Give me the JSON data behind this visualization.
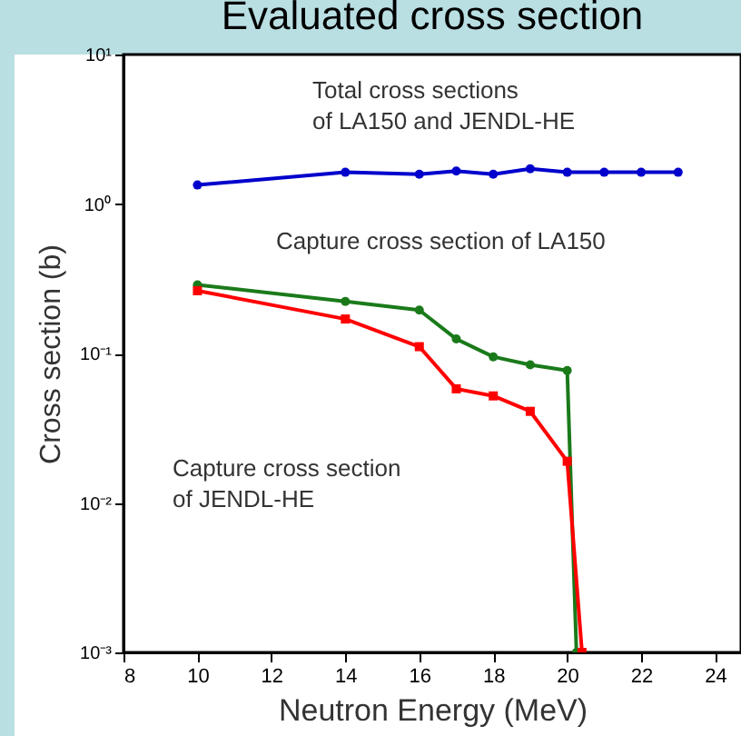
{
  "chart_data": {
    "type": "line",
    "title": "Evaluated cross section",
    "xlabel": "Neutron Energy (MeV)",
    "ylabel": "Cross section (b)",
    "log": "y",
    "xlim": [
      8,
      24.7
    ],
    "xticks": [
      8,
      10,
      12,
      14,
      16,
      18,
      20,
      22,
      24
    ],
    "ylim": [
      0.001,
      10
    ],
    "yticks": [
      {
        "value": 0.001,
        "label": "10⁻³"
      },
      {
        "value": 0.01,
        "label": "10⁻²"
      },
      {
        "value": 0.1,
        "label": "10⁻¹"
      },
      {
        "value": 1,
        "label": "10⁰"
      },
      {
        "value": 10,
        "label": "10¹"
      }
    ],
    "grid": false,
    "line_style": "solid",
    "series": [
      {
        "color": "#0000cc",
        "marker": "circle",
        "x": [
          10,
          14,
          16,
          17,
          18,
          19,
          20,
          21,
          22,
          23
        ],
        "values": [
          1.34,
          1.63,
          1.58,
          1.66,
          1.58,
          1.72,
          1.63,
          1.63,
          1.63,
          1.63
        ]
      },
      {
        "color": "#1a7a1a",
        "marker": "circle",
        "x": [
          10,
          14,
          16,
          17,
          18,
          19,
          20,
          20.25
        ],
        "values": [
          0.288,
          0.223,
          0.195,
          0.125,
          0.095,
          0.084,
          0.077,
          0.001
        ]
      },
      {
        "color": "#ff0000",
        "marker": "square",
        "x": [
          10,
          14,
          16,
          17,
          18,
          19,
          20,
          20.4
        ],
        "values": [
          0.263,
          0.17,
          0.111,
          0.058,
          0.052,
          0.041,
          0.019,
          0.001
        ]
      }
    ],
    "annotations": [
      "Total cross sections\nof LA150 and JENDL-HE",
      "Capture cross section of LA150",
      "Capture cross section\nof JENDL-HE"
    ]
  }
}
